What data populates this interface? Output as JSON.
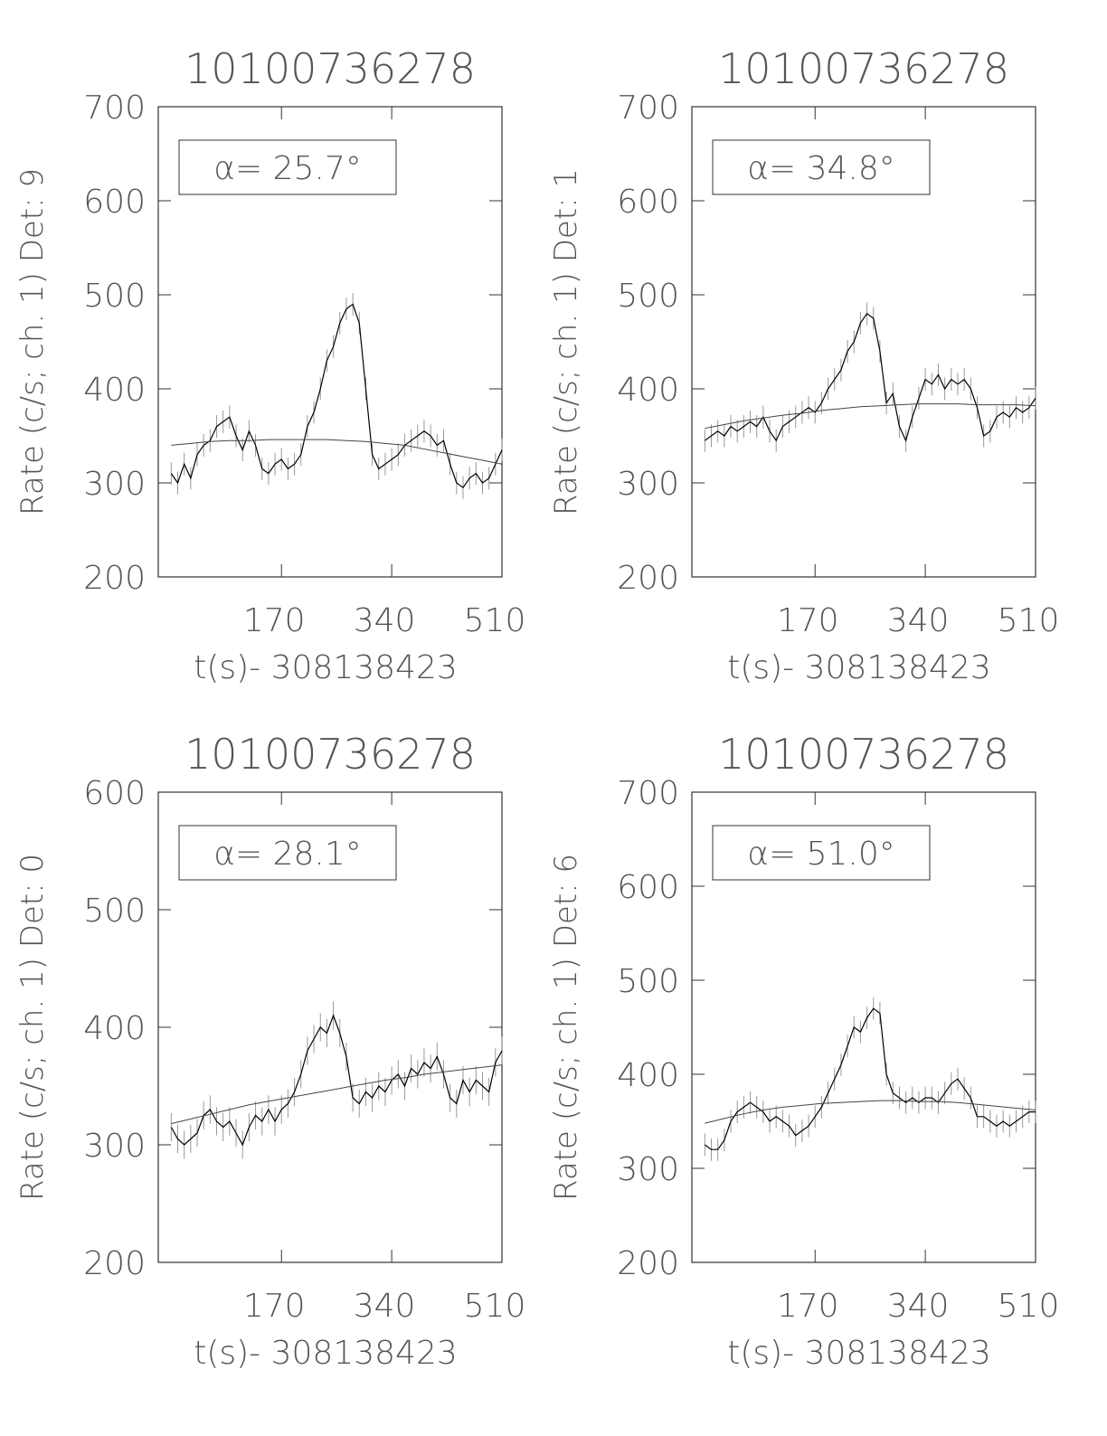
{
  "chart_data": [
    {
      "type": "line",
      "title": "10100736278",
      "y_label": "Rate (c/s; ch. 1) Det: 9",
      "x_label": "t(s)- 308138423",
      "annotation": "α= 25.7°",
      "xlim": [
        -20,
        510
      ],
      "xticks": [
        170,
        340,
        510
      ],
      "ylim": [
        200,
        700
      ],
      "yticks": [
        200,
        300,
        400,
        500,
        600,
        700
      ],
      "color": "#000000",
      "yerr": 12,
      "x": [
        0,
        10,
        20,
        30,
        40,
        50,
        60,
        70,
        80,
        90,
        100,
        110,
        120,
        130,
        140,
        150,
        160,
        170,
        180,
        190,
        200,
        210,
        220,
        230,
        240,
        250,
        260,
        270,
        280,
        290,
        300,
        310,
        320,
        330,
        340,
        350,
        360,
        370,
        380,
        390,
        400,
        410,
        420,
        430,
        440,
        450,
        460,
        470,
        480,
        490,
        500,
        510
      ],
      "values": [
        310,
        300,
        320,
        305,
        330,
        340,
        345,
        360,
        365,
        370,
        350,
        335,
        355,
        340,
        315,
        310,
        320,
        325,
        315,
        320,
        330,
        360,
        375,
        400,
        430,
        445,
        470,
        485,
        490,
        470,
        400,
        330,
        315,
        320,
        325,
        330,
        340,
        345,
        350,
        355,
        350,
        340,
        345,
        320,
        300,
        295,
        305,
        310,
        300,
        305,
        320,
        335
      ],
      "fit": {
        "x": [
          0,
          30,
          60,
          90,
          120,
          150,
          180,
          210,
          240,
          270,
          300,
          330,
          360,
          390,
          420,
          450,
          480,
          510
        ],
        "values": [
          340,
          342,
          344,
          345,
          345,
          346,
          346,
          346,
          346,
          345,
          344,
          342,
          340,
          336,
          332,
          328,
          324,
          320
        ]
      }
    },
    {
      "type": "line",
      "title": "10100736278",
      "y_label": "Rate (c/s; ch. 1) Det: 1",
      "x_label": "t(s)- 308138423",
      "annotation": "α= 34.8°",
      "xlim": [
        -20,
        510
      ],
      "xticks": [
        170,
        340,
        510
      ],
      "ylim": [
        200,
        700
      ],
      "yticks": [
        200,
        300,
        400,
        500,
        600,
        700
      ],
      "color": "#000000",
      "yerr": 12,
      "x": [
        0,
        10,
        20,
        30,
        40,
        50,
        60,
        70,
        80,
        90,
        100,
        110,
        120,
        130,
        140,
        150,
        160,
        170,
        180,
        190,
        200,
        210,
        220,
        230,
        240,
        250,
        260,
        270,
        280,
        290,
        300,
        310,
        320,
        330,
        340,
        350,
        360,
        370,
        380,
        390,
        400,
        410,
        420,
        430,
        440,
        450,
        460,
        470,
        480,
        490,
        500,
        510
      ],
      "values": [
        345,
        350,
        355,
        350,
        360,
        355,
        360,
        365,
        360,
        370,
        355,
        345,
        360,
        365,
        370,
        375,
        380,
        375,
        385,
        400,
        410,
        420,
        440,
        450,
        470,
        480,
        475,
        440,
        385,
        395,
        360,
        345,
        370,
        390,
        410,
        405,
        415,
        400,
        410,
        405,
        410,
        400,
        380,
        350,
        355,
        370,
        375,
        370,
        380,
        375,
        380,
        390
      ],
      "fit": {
        "x": [
          0,
          30,
          60,
          90,
          120,
          150,
          180,
          210,
          240,
          270,
          300,
          330,
          360,
          390,
          420,
          450,
          480,
          510
        ],
        "values": [
          358,
          362,
          366,
          369,
          372,
          374,
          377,
          379,
          381,
          382,
          383,
          384,
          384,
          384,
          383,
          383,
          383,
          382
        ]
      }
    },
    {
      "type": "line",
      "title": "10100736278",
      "y_label": "Rate (c/s; ch. 1) Det: 0",
      "x_label": "t(s)- 308138423",
      "annotation": "α= 28.1°",
      "xlim": [
        -20,
        510
      ],
      "xticks": [
        170,
        340,
        510
      ],
      "ylim": [
        200,
        600
      ],
      "yticks": [
        200,
        300,
        400,
        500,
        600
      ],
      "color": "#000000",
      "yerr": 12,
      "x": [
        0,
        10,
        20,
        30,
        40,
        50,
        60,
        70,
        80,
        90,
        100,
        110,
        120,
        130,
        140,
        150,
        160,
        170,
        180,
        190,
        200,
        210,
        220,
        230,
        240,
        250,
        260,
        270,
        280,
        290,
        300,
        310,
        320,
        330,
        340,
        350,
        360,
        370,
        380,
        390,
        400,
        410,
        420,
        430,
        440,
        450,
        460,
        470,
        480,
        490,
        500,
        510
      ],
      "values": [
        315,
        305,
        300,
        305,
        310,
        325,
        330,
        320,
        315,
        320,
        310,
        300,
        315,
        325,
        320,
        330,
        320,
        330,
        335,
        345,
        360,
        380,
        390,
        400,
        395,
        410,
        395,
        375,
        340,
        335,
        345,
        340,
        350,
        345,
        355,
        360,
        350,
        365,
        360,
        370,
        365,
        375,
        360,
        340,
        335,
        355,
        345,
        355,
        350,
        345,
        370,
        380
      ],
      "fit": {
        "x": [
          0,
          30,
          60,
          90,
          120,
          150,
          180,
          210,
          240,
          270,
          300,
          330,
          360,
          390,
          420,
          450,
          480,
          510
        ],
        "values": [
          318,
          322,
          326,
          330,
          334,
          337,
          340,
          343,
          346,
          349,
          352,
          355,
          357,
          360,
          362,
          364,
          366,
          368
        ]
      }
    },
    {
      "type": "line",
      "title": "10100736278",
      "y_label": "Rate (c/s; ch. 1) Det: 6",
      "x_label": "t(s)- 308138423",
      "annotation": "α= 51.0°",
      "xlim": [
        -20,
        510
      ],
      "xticks": [
        170,
        340,
        510
      ],
      "ylim": [
        200,
        700
      ],
      "yticks": [
        200,
        300,
        400,
        500,
        600,
        700
      ],
      "color": "#000000",
      "yerr": 12,
      "x": [
        0,
        10,
        20,
        30,
        40,
        50,
        60,
        70,
        80,
        90,
        100,
        110,
        120,
        130,
        140,
        150,
        160,
        170,
        180,
        190,
        200,
        210,
        220,
        230,
        240,
        250,
        260,
        270,
        280,
        290,
        300,
        310,
        320,
        330,
        340,
        350,
        360,
        370,
        380,
        390,
        400,
        410,
        420,
        430,
        440,
        450,
        460,
        470,
        480,
        490,
        500,
        510
      ],
      "values": [
        325,
        320,
        320,
        330,
        350,
        360,
        365,
        370,
        365,
        360,
        350,
        355,
        350,
        345,
        335,
        340,
        345,
        355,
        365,
        380,
        395,
        410,
        430,
        450,
        445,
        460,
        470,
        465,
        400,
        380,
        375,
        370,
        375,
        370,
        375,
        375,
        370,
        380,
        390,
        395,
        385,
        375,
        355,
        355,
        350,
        345,
        350,
        345,
        350,
        355,
        360,
        360
      ],
      "fit": {
        "x": [
          0,
          30,
          60,
          90,
          120,
          150,
          180,
          210,
          240,
          270,
          300,
          330,
          360,
          390,
          420,
          450,
          480,
          510
        ],
        "values": [
          348,
          353,
          358,
          362,
          365,
          367,
          369,
          370,
          371,
          372,
          372,
          371,
          371,
          370,
          368,
          366,
          364,
          362
        ]
      }
    }
  ]
}
